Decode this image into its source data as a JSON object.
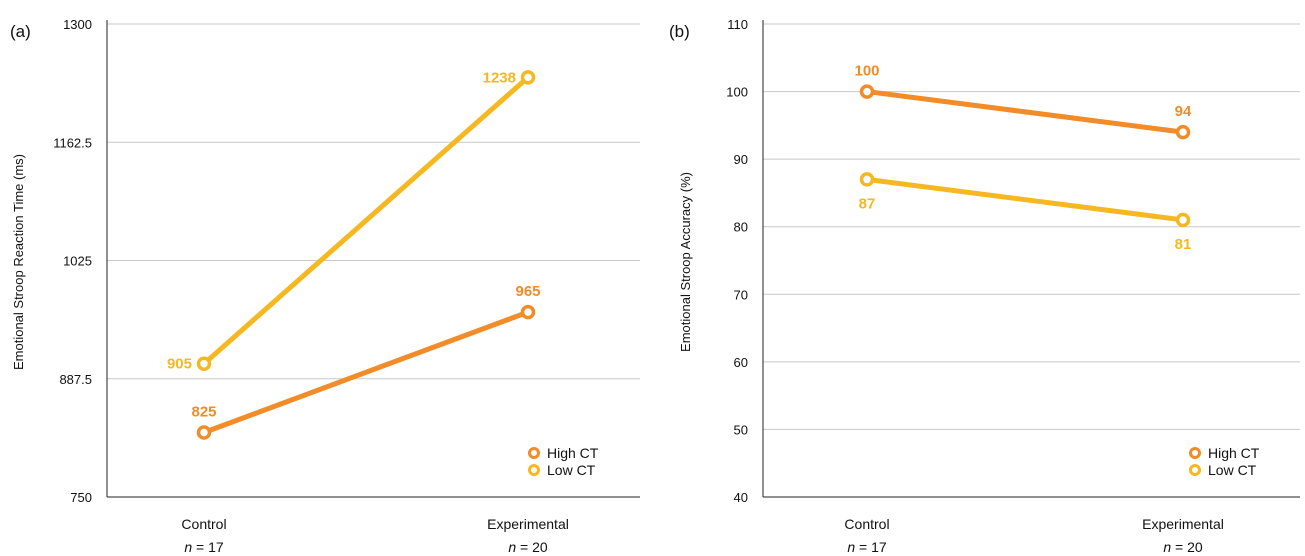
{
  "colors": {
    "high": "#F28C28",
    "low": "#F5B820"
  },
  "chart_data": [
    {
      "panel": "(a)",
      "type": "line",
      "ylabel": "Emotional Stroop Reaction Time (ms)",
      "ylim": [
        750,
        1300
      ],
      "yticks": [
        "750",
        "887.5",
        "1025",
        "1162.5",
        "1300"
      ],
      "categories": [
        "Control",
        "Experimental"
      ],
      "n_labels": [
        {
          "n": "n",
          "eq": " = 17"
        },
        {
          "n": "n",
          "eq": " = 20"
        }
      ],
      "grid": true,
      "legend": "bottom-right",
      "series": [
        {
          "name": "High CT",
          "color_key": "high",
          "values": [
            825,
            965
          ],
          "labels": [
            "825",
            "965"
          ],
          "label_pos": [
            "above",
            "above"
          ]
        },
        {
          "name": "Low CT",
          "color_key": "low",
          "values": [
            905,
            1238
          ],
          "labels": [
            "905",
            "1238"
          ],
          "label_pos": [
            "left",
            "left"
          ]
        }
      ]
    },
    {
      "panel": "(b)",
      "type": "line",
      "ylabel": "Emotional Stroop Accuracy (%)",
      "ylim": [
        40,
        110
      ],
      "yticks": [
        "40",
        "50",
        "60",
        "70",
        "80",
        "90",
        "100",
        "110"
      ],
      "categories": [
        "Control",
        "Experimental"
      ],
      "n_labels": [
        {
          "n": "n",
          "eq": " = 17"
        },
        {
          "n": "n",
          "eq": " = 20"
        }
      ],
      "grid": true,
      "legend": "bottom-right",
      "series": [
        {
          "name": "High CT",
          "color_key": "high",
          "values": [
            100,
            94
          ],
          "labels": [
            "100",
            "94"
          ],
          "label_pos": [
            "above",
            "above"
          ]
        },
        {
          "name": "Low CT",
          "color_key": "low",
          "values": [
            87,
            81
          ],
          "labels": [
            "87",
            "81"
          ],
          "label_pos": [
            "below",
            "below"
          ]
        }
      ]
    }
  ]
}
